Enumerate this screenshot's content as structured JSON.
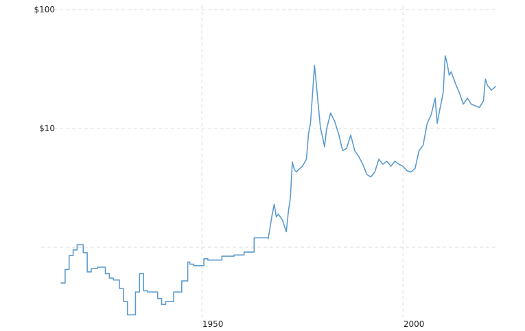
{
  "chart_data": {
    "type": "line",
    "title": "",
    "xlabel": "",
    "ylabel": "",
    "x_scale": "linear",
    "y_scale": "log",
    "xlim": [
      1915,
      2023
    ],
    "ylim": [
      0.25,
      100
    ],
    "grid": true,
    "legend": "none",
    "x_ticks": [
      {
        "value": 1950,
        "label": "1950"
      },
      {
        "value": 2000,
        "label": "2000"
      }
    ],
    "y_ticks": [
      {
        "value": 100,
        "label": "$100"
      },
      {
        "value": 10,
        "label": "$10"
      },
      {
        "value": 1,
        "label": ""
      }
    ],
    "colors": {
      "line": "#5b9bd0",
      "grid": "#dcdcdc",
      "text": "#222222"
    },
    "series": [
      {
        "x": [
          1915.0,
          1916.0,
          1916.0,
          1917.0,
          1917.0,
          1918.0,
          1918.0,
          1919.0,
          1919.0,
          1920.5,
          1920.5,
          1921.5,
          1921.5,
          1922.5,
          1922.5,
          1924.0,
          1924.0,
          1926.0,
          1926.0,
          1927.0,
          1927.0,
          1928.0,
          1928.0,
          1929.5,
          1929.5,
          1930.5,
          1930.5,
          1931.5,
          1931.5,
          1933.5,
          1933.5,
          1934.5,
          1934.5,
          1935.5,
          1935.5,
          1936.5,
          1936.5,
          1939.0,
          1939.0,
          1940.0,
          1940.0,
          1941.0,
          1941.0,
          1943.0,
          1943.0,
          1945.0,
          1945.0,
          1946.5,
          1946.5,
          1947.0,
          1947.0,
          1948.0,
          1948.0,
          1950.5,
          1950.5,
          1951.5,
          1951.5,
          1955.0,
          1955.0,
          1958.0,
          1958.0,
          1960.5,
          1960.5,
          1963.0,
          1963.0,
          1966.5,
          1966.5,
          1967.5,
          1968.0,
          1968.5,
          1969.0,
          1970.0,
          1971.0,
          1971.5,
          1972.0,
          1972.5,
          1973.0,
          1973.5,
          1974.0,
          1975.0,
          1976.0,
          1976.5,
          1977.0,
          1978.0,
          1979.0,
          1979.5,
          1980.0,
          1980.5,
          1981.0,
          1982.0,
          1983.0,
          1984.0,
          1985.0,
          1986.0,
          1987.0,
          1988.0,
          1989.0,
          1990.0,
          1991.0,
          1992.0,
          1993.0,
          1994.0,
          1995.0,
          1996.0,
          1997.0,
          1998.0,
          1999.0,
          2000.0,
          2001.0,
          2002.0,
          2003.0,
          2004.0,
          2005.0,
          2006.0,
          2007.0,
          2008.0,
          2008.5,
          2009.0,
          2010.0,
          2010.5,
          2011.0,
          2011.5,
          2012.0,
          2013.0,
          2014.0,
          2015.0,
          2016.0,
          2017.0,
          2018.0,
          2019.0,
          2020.0,
          2020.5,
          2021.0,
          2022.0,
          2023.0
        ],
        "y": [
          0.5,
          0.5,
          0.65,
          0.65,
          0.85,
          0.85,
          0.95,
          0.95,
          1.05,
          1.05,
          0.9,
          0.9,
          0.62,
          0.62,
          0.66,
          0.66,
          0.68,
          0.68,
          0.6,
          0.6,
          0.55,
          0.55,
          0.53,
          0.53,
          0.45,
          0.45,
          0.35,
          0.35,
          0.27,
          0.27,
          0.42,
          0.42,
          0.6,
          0.6,
          0.43,
          0.43,
          0.42,
          0.42,
          0.37,
          0.37,
          0.33,
          0.33,
          0.35,
          0.35,
          0.42,
          0.42,
          0.52,
          0.52,
          0.75,
          0.75,
          0.72,
          0.72,
          0.7,
          0.7,
          0.8,
          0.8,
          0.78,
          0.78,
          0.84,
          0.84,
          0.86,
          0.86,
          0.91,
          0.91,
          1.2,
          1.2,
          1.18,
          1.9,
          2.3,
          1.8,
          1.9,
          1.7,
          1.35,
          2.0,
          2.6,
          5.2,
          4.5,
          4.3,
          4.5,
          4.8,
          5.5,
          9.0,
          11.0,
          34.0,
          15.0,
          10.0,
          8.5,
          7.0,
          9.8,
          13.5,
          11.5,
          9.0,
          6.5,
          6.8,
          8.8,
          6.5,
          5.8,
          5.0,
          4.1,
          3.9,
          4.3,
          5.5,
          5.0,
          5.3,
          4.8,
          5.3,
          5.0,
          4.8,
          4.4,
          4.3,
          4.6,
          6.5,
          7.2,
          11.0,
          13.0,
          18.0,
          11.0,
          13.5,
          20.0,
          41.0,
          35.0,
          28.0,
          30.0,
          24.0,
          20.0,
          16.0,
          18.0,
          16.0,
          15.5,
          15.0,
          17.0,
          26.0,
          23.0,
          21.0,
          22.5
        ]
      }
    ]
  }
}
